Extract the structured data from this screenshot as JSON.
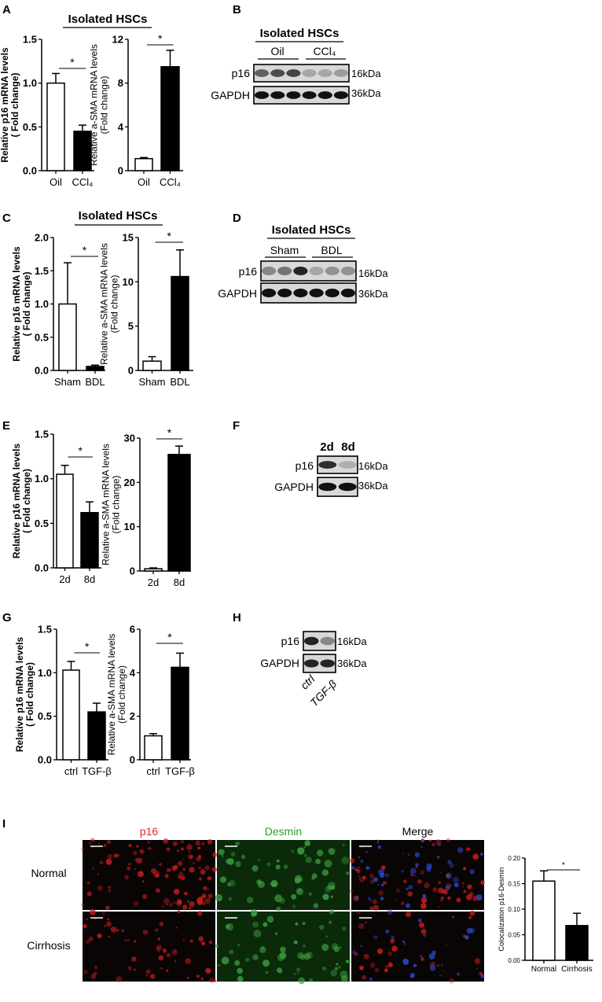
{
  "panels": {
    "A": "A",
    "B": "B",
    "C": "C",
    "D": "D",
    "E": "E",
    "F": "F",
    "G": "G",
    "H": "H",
    "I": "I"
  },
  "headers": {
    "A": "Isolated HSCs",
    "C": "Isolated HSCs"
  },
  "blots": {
    "B": {
      "title": "Isolated HSCs",
      "groups": [
        "Oil",
        "CCl₄"
      ],
      "rows": [
        "p16",
        "GAPDH"
      ],
      "sizes": [
        "16kDa",
        "36kDa"
      ]
    },
    "D": {
      "title": "Isolated HSCs",
      "groups": [
        "Sham",
        "BDL"
      ],
      "rows": [
        "p16",
        "GAPDH"
      ],
      "sizes": [
        "16kDa",
        "36kDa"
      ]
    },
    "F": {
      "lanes": [
        "2d",
        "8d"
      ],
      "rows": [
        "p16",
        "GAPDH"
      ],
      "sizes": [
        "16kDa",
        "36kDa"
      ]
    },
    "H": {
      "lanes": [
        "ctrl",
        "TGF-β"
      ],
      "rows": [
        "p16",
        "GAPDH"
      ],
      "sizes": [
        "16kDa",
        "36kDa"
      ]
    }
  },
  "microscopy": {
    "columns": [
      "p16",
      "Desmin",
      "Merge"
    ],
    "rows": [
      "Normal",
      "Cirrhosis"
    ],
    "column_colors": [
      "#e8262a",
      "#2ca02c",
      "#000000"
    ]
  },
  "chart_data": [
    {
      "type": "bar",
      "panel": "A",
      "categories": [
        "Oil",
        "CCl₄"
      ],
      "values": [
        1.0,
        0.45
      ],
      "errors": [
        0.11,
        0.07
      ],
      "ylabel": [
        "Relative p16 mRNA levels",
        "( Fold change)"
      ],
      "ylabel_bold": true,
      "ylim": [
        0,
        1.5
      ],
      "yticks": [
        "0.0",
        "0.5",
        "1.0",
        "1.5"
      ],
      "significance": "*",
      "fills": [
        "#ffffff",
        "#000000"
      ]
    },
    {
      "type": "bar",
      "panel": "A",
      "categories": [
        "Oil",
        "CCl₄"
      ],
      "values": [
        1.1,
        9.5
      ],
      "errors": [
        0.1,
        1.5
      ],
      "ylabel": [
        "Relative a-SMA mRNA levels",
        "(Fold change)"
      ],
      "ylabel_bold": false,
      "ylim": [
        0,
        12
      ],
      "yticks": [
        "0",
        "4",
        "8",
        "12"
      ],
      "significance": "*",
      "fills": [
        "#ffffff",
        "#000000"
      ]
    },
    {
      "type": "bar",
      "panel": "C",
      "categories": [
        "Sham",
        "BDL"
      ],
      "values": [
        1.0,
        0.06
      ],
      "errors": [
        0.62,
        0.02
      ],
      "ylabel": [
        "Relative p16 mRNA levels",
        "( Fold change)"
      ],
      "ylabel_bold": true,
      "ylim": [
        0,
        2.0
      ],
      "yticks": [
        "0.0",
        "0.5",
        "1.0",
        "1.5",
        "2.0"
      ],
      "significance": "*",
      "fills": [
        "#ffffff",
        "#000000"
      ]
    },
    {
      "type": "bar",
      "panel": "C",
      "categories": [
        "Sham",
        "BDL"
      ],
      "values": [
        1.05,
        10.6
      ],
      "errors": [
        0.5,
        3.0
      ],
      "ylabel": [
        "Relative a-SMA mRNA levels",
        "(Fold change)"
      ],
      "ylabel_bold": false,
      "ylim": [
        0,
        15
      ],
      "yticks": [
        "0",
        "5",
        "10",
        "15"
      ],
      "significance": "*",
      "fills": [
        "#ffffff",
        "#000000"
      ]
    },
    {
      "type": "bar",
      "panel": "E",
      "categories": [
        "2d",
        "8d"
      ],
      "values": [
        1.05,
        0.62
      ],
      "errors": [
        0.1,
        0.12
      ],
      "ylabel": [
        "Relative p16 mRNA levels",
        "( Fold change)"
      ],
      "ylabel_bold": true,
      "ylim": [
        0,
        1.5
      ],
      "yticks": [
        "0.0",
        "0.5",
        "1.0",
        "1.5"
      ],
      "significance": "*",
      "fills": [
        "#ffffff",
        "#000000"
      ]
    },
    {
      "type": "bar",
      "panel": "E",
      "categories": [
        "2d",
        "8d"
      ],
      "values": [
        0.5,
        26.3
      ],
      "errors": [
        0.2,
        1.9
      ],
      "ylabel": [
        "Relative a-SMA mRNA levels",
        "(Fold change)"
      ],
      "ylabel_bold": false,
      "ylim": [
        0,
        30
      ],
      "yticks": [
        "0",
        "10",
        "20",
        "30"
      ],
      "significance": "*",
      "fills": [
        "#ffffff",
        "#000000"
      ]
    },
    {
      "type": "bar",
      "panel": "G",
      "categories": [
        "ctrl",
        "TGF-β"
      ],
      "values": [
        1.03,
        0.55
      ],
      "errors": [
        0.1,
        0.1
      ],
      "ylabel": [
        "Relative p16 mRNA levels",
        "( Fold change)"
      ],
      "ylabel_bold": true,
      "ylim": [
        0,
        1.5
      ],
      "yticks": [
        "0.0",
        "0.5",
        "1.0",
        "1.5"
      ],
      "significance": "*",
      "fills": [
        "#ffffff",
        "#000000"
      ]
    },
    {
      "type": "bar",
      "panel": "G",
      "categories": [
        "ctrl",
        "TGF-β"
      ],
      "values": [
        1.1,
        4.25
      ],
      "errors": [
        0.1,
        0.65
      ],
      "ylabel": [
        "Relative a-SMA mRNA levels",
        "(Fold change)"
      ],
      "ylabel_bold": false,
      "ylim": [
        0,
        6
      ],
      "yticks": [
        "0",
        "2",
        "4",
        "6"
      ],
      "significance": "*",
      "fills": [
        "#ffffff",
        "#000000"
      ]
    },
    {
      "type": "bar",
      "panel": "I",
      "categories": [
        "Normal",
        "Cirrhosis"
      ],
      "values": [
        0.155,
        0.068
      ],
      "errors": [
        0.02,
        0.024
      ],
      "ylabel": [
        "Colocalization p16-Desmin"
      ],
      "ylabel_bold": false,
      "ylim": [
        0,
        0.2
      ],
      "yticks": [
        "0.00",
        "0.05",
        "0.10",
        "0.15",
        "0.20"
      ],
      "significance": "*",
      "fills": [
        "#ffffff",
        "#000000"
      ]
    }
  ]
}
